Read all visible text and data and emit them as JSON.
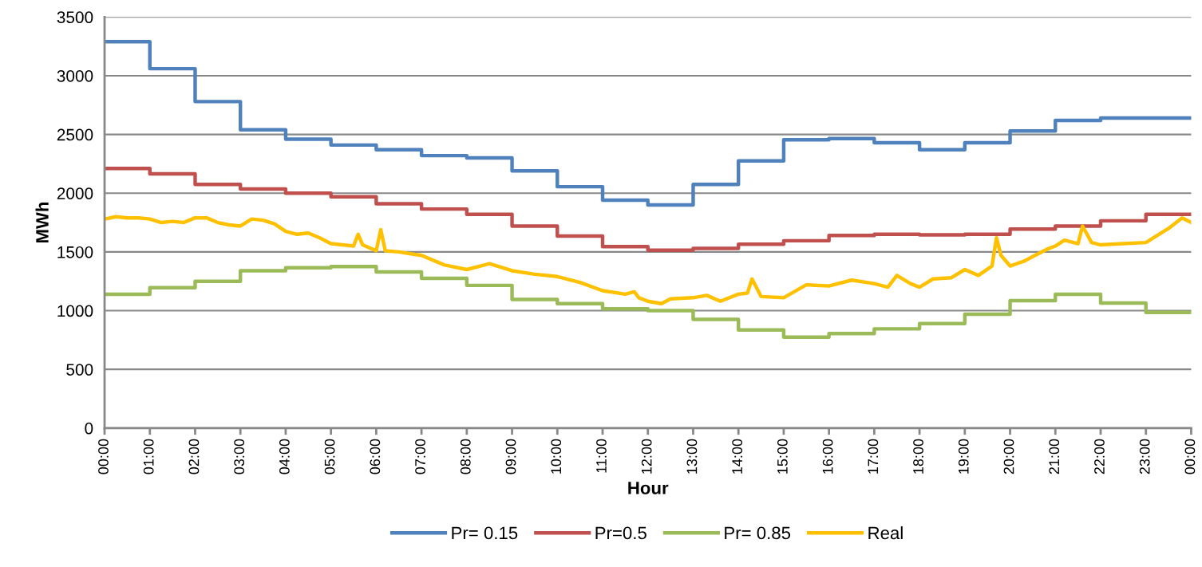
{
  "chart_data": {
    "type": "step",
    "xlabel": "Hour",
    "ylabel": "MWh",
    "xlim": [
      0,
      24
    ],
    "xticks": [
      {
        "value": 0,
        "label": "00:00"
      },
      {
        "value": 1,
        "label": "01:00"
      },
      {
        "value": 2,
        "label": "02:00"
      },
      {
        "value": 3,
        "label": "03:00"
      },
      {
        "value": 4,
        "label": "04:00"
      },
      {
        "value": 5,
        "label": "05:00"
      },
      {
        "value": 6,
        "label": "06:00"
      },
      {
        "value": 7,
        "label": "07:00"
      },
      {
        "value": 8,
        "label": "08:00"
      },
      {
        "value": 9,
        "label": "09:00"
      },
      {
        "value": 10,
        "label": "10:00"
      },
      {
        "value": 11,
        "label": "11:00"
      },
      {
        "value": 12,
        "label": "12:00"
      },
      {
        "value": 13,
        "label": "13:00"
      },
      {
        "value": 14,
        "label": "14:00"
      },
      {
        "value": 15,
        "label": "15:00"
      },
      {
        "value": 16,
        "label": "16:00"
      },
      {
        "value": 17,
        "label": "17:00"
      },
      {
        "value": 18,
        "label": "18:00"
      },
      {
        "value": 19,
        "label": "19:00"
      },
      {
        "value": 20,
        "label": "20:00"
      },
      {
        "value": 21,
        "label": "21:00"
      },
      {
        "value": 22,
        "label": "22:00"
      },
      {
        "value": 23,
        "label": "23:00"
      },
      {
        "value": 24,
        "label": "00:00"
      }
    ],
    "ylim": [
      0,
      3500
    ],
    "yticks": [
      0,
      500,
      1000,
      1500,
      2000,
      2500,
      3000,
      3500
    ],
    "grid": "y",
    "legend": "bottom",
    "x": [
      0,
      1,
      2,
      3,
      4,
      5,
      6,
      7,
      8,
      9,
      10,
      11,
      12,
      13,
      14,
      15,
      16,
      17,
      18,
      19,
      20,
      21,
      22,
      23,
      24
    ],
    "series": [
      {
        "name": "Pr= 0.15",
        "color": "#4f81bd",
        "values": [
          3290,
          3060,
          2780,
          2540,
          2460,
          2410,
          2370,
          2320,
          2300,
          2190,
          2055,
          1940,
          1900,
          2075,
          2275,
          2455,
          2465,
          2430,
          2370,
          2430,
          2530,
          2620,
          2640,
          2640,
          2640
        ]
      },
      {
        "name": "Pr=0.5",
        "color": "#c0504d",
        "values": [
          2210,
          2165,
          2075,
          2035,
          2000,
          1970,
          1910,
          1865,
          1820,
          1720,
          1635,
          1545,
          1515,
          1530,
          1565,
          1595,
          1640,
          1650,
          1645,
          1650,
          1695,
          1720,
          1765,
          1820,
          1820
        ]
      },
      {
        "name": "Pr= 0.85",
        "color": "#9bbb59",
        "values": [
          1140,
          1195,
          1250,
          1340,
          1365,
          1375,
          1330,
          1275,
          1215,
          1095,
          1060,
          1015,
          1000,
          925,
          835,
          775,
          805,
          845,
          890,
          970,
          1085,
          1140,
          1065,
          985,
          985
        ]
      },
      {
        "name": "Real",
        "type": "line",
        "color": "#ffc000",
        "x": [
          0,
          0.25,
          0.5,
          0.75,
          1,
          1.25,
          1.5,
          1.75,
          2,
          2.25,
          2.5,
          2.75,
          3,
          3.25,
          3.5,
          3.75,
          4,
          4.25,
          4.5,
          4.75,
          5,
          5.25,
          5.5,
          5.6,
          5.7,
          6,
          6.1,
          6.2,
          6.5,
          7,
          7.5,
          8,
          8.3,
          8.5,
          9,
          9.5,
          10,
          10.5,
          11,
          11.5,
          11.7,
          11.8,
          12,
          12.3,
          12.5,
          13,
          13.3,
          13.6,
          14,
          14.2,
          14.3,
          14.5,
          15,
          15.5,
          16,
          16.5,
          17,
          17.3,
          17.5,
          17.8,
          18,
          18.3,
          18.7,
          19,
          19.3,
          19.6,
          19.7,
          19.8,
          20,
          20.3,
          20.5,
          20.8,
          21,
          21.2,
          21.5,
          21.6,
          21.8,
          22,
          22.5,
          23,
          23.5,
          23.8,
          24
        ],
        "values": [
          1780,
          1800,
          1790,
          1790,
          1780,
          1750,
          1760,
          1750,
          1790,
          1790,
          1750,
          1730,
          1720,
          1780,
          1770,
          1740,
          1675,
          1650,
          1660,
          1620,
          1570,
          1560,
          1550,
          1650,
          1560,
          1510,
          1690,
          1510,
          1500,
          1470,
          1390,
          1350,
          1380,
          1400,
          1340,
          1310,
          1290,
          1240,
          1170,
          1140,
          1160,
          1110,
          1080,
          1060,
          1100,
          1110,
          1130,
          1080,
          1140,
          1150,
          1270,
          1120,
          1110,
          1220,
          1210,
          1260,
          1230,
          1200,
          1300,
          1230,
          1200,
          1270,
          1280,
          1350,
          1300,
          1380,
          1620,
          1470,
          1380,
          1420,
          1460,
          1520,
          1550,
          1600,
          1570,
          1720,
          1580,
          1560,
          1570,
          1580,
          1700,
          1790,
          1750
        ]
      }
    ]
  }
}
